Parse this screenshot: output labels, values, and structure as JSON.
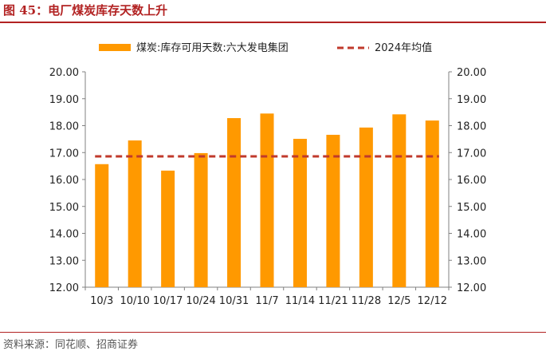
{
  "figure": {
    "title": "图 45：电厂煤炭库存天数上升",
    "source": "资料来源：同花顺、招商证券"
  },
  "colors": {
    "bar": "#FF9900",
    "avg_line": "#C0392B",
    "title": "#B22222",
    "axis": "#808080"
  },
  "chart_data": {
    "type": "bar",
    "categories": [
      "10/3",
      "10/10",
      "10/17",
      "10/24",
      "10/31",
      "11/7",
      "11/14",
      "11/21",
      "11/28",
      "12/5",
      "12/12"
    ],
    "series": [
      {
        "name": "煤炭:库存可用天数:六大发电集团",
        "type": "bar",
        "values": [
          16.57,
          17.45,
          16.33,
          16.98,
          18.28,
          18.45,
          17.51,
          17.66,
          17.93,
          18.42,
          18.19
        ]
      },
      {
        "name": "2024年均值",
        "type": "line",
        "style": "dashed",
        "value": 16.86
      }
    ],
    "ylim": [
      12,
      20
    ],
    "yticks": [
      "12.00",
      "13.00",
      "14.00",
      "15.00",
      "16.00",
      "17.00",
      "18.00",
      "19.00",
      "20.00"
    ],
    "secondary_yticks": [
      "12.00",
      "13.00",
      "14.00",
      "15.00",
      "16.00",
      "17.00",
      "18.00",
      "19.00",
      "20.00"
    ],
    "grid": false,
    "legend": "top"
  }
}
